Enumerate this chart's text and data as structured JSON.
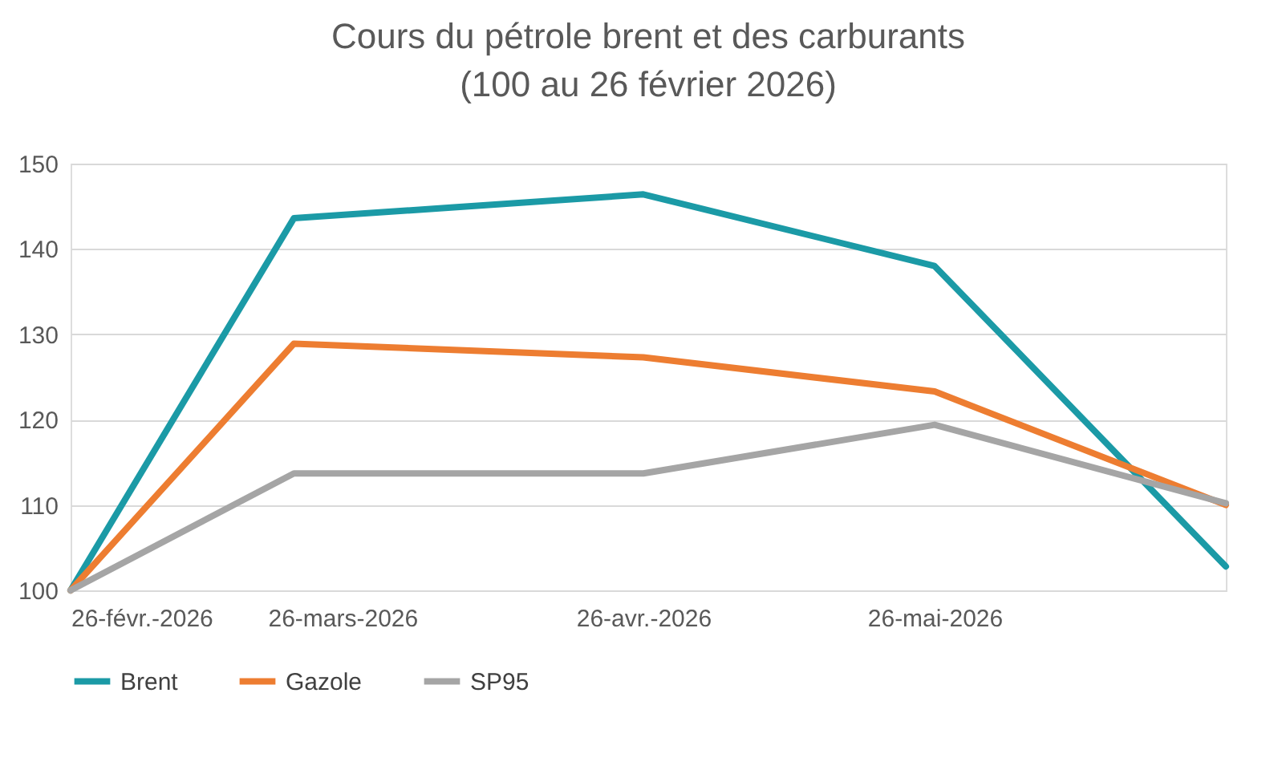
{
  "chart_data": {
    "type": "line",
    "title": "Cours du pétrole brent et des carburants",
    "subtitle": "(100 au 26 février 2026)",
    "x": [
      "2026-02-26",
      "2026-03-21",
      "2026-04-26",
      "2026-05-26",
      "2026-06-25"
    ],
    "series": [
      {
        "name": "Brent",
        "color": "#1b9aa6",
        "values": [
          100,
          143.6,
          146.4,
          138,
          102.8
        ]
      },
      {
        "name": "Gazole",
        "color": "#ed7d31",
        "values": [
          100,
          128.9,
          127.3,
          123.3,
          110
        ]
      },
      {
        "name": "SP95",
        "color": "#a5a5a5",
        "values": [
          100,
          113.7,
          113.7,
          119.4,
          110.2
        ]
      }
    ],
    "xlim": [
      "2026-02-26",
      "2026-06-25"
    ],
    "xticks": [
      {
        "value": "2026-02-26",
        "label": "26-févr.-2026"
      },
      {
        "value": "2026-03-26",
        "label": "26-mars-2026"
      },
      {
        "value": "2026-04-26",
        "label": "26-avr.-2026"
      },
      {
        "value": "2026-05-26",
        "label": "26-mai-2026"
      }
    ],
    "ylim": [
      100,
      150
    ],
    "yticks": [
      100,
      110,
      120,
      130,
      140,
      150
    ],
    "grid": "y",
    "legend": "bottom",
    "marker": "none",
    "line_style": "solid"
  }
}
